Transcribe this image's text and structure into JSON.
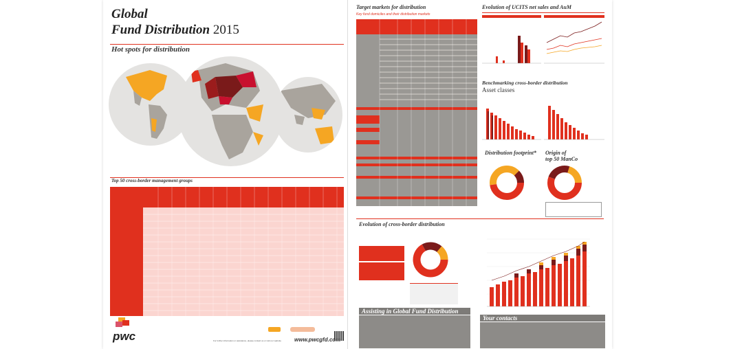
{
  "header": {
    "title_line1": "Global",
    "title_line2": "Fund Distribution",
    "title_year": "2015"
  },
  "sections": {
    "hot_spots": "Hot spots for distribution",
    "top50": "Top 50 cross-border management groups",
    "target_markets": "Target markets for distribution",
    "target_markets_sub": "Key fund domiciles and their distribution markets",
    "evolution_ucits": "Evolution of UCITS net sales and AuM",
    "benchmarking": "Benchmarking cross-border distribution",
    "asset_classes": "Asset classes",
    "distribution_footprint": "Distribution footprint*",
    "origin_top50_line1": "Origin of",
    "origin_top50_line2": "top 50 ManCo",
    "evolution_cross_border": "Evolution of cross-border distribution",
    "assisting": "Assisting in Global Fund Distribution",
    "your_contacts": "Your contacts"
  },
  "footer": {
    "website_prefix": "For further information or assistance, please contact us or visit our website",
    "website": "www.pwcgfd.com",
    "brand": "pwc"
  },
  "colors": {
    "accent": "#e0301e",
    "dark_red": "#7a1a1a",
    "amber": "#f5a623",
    "grey": "#8d8b88",
    "map_grey": "#a9a49d"
  }
}
